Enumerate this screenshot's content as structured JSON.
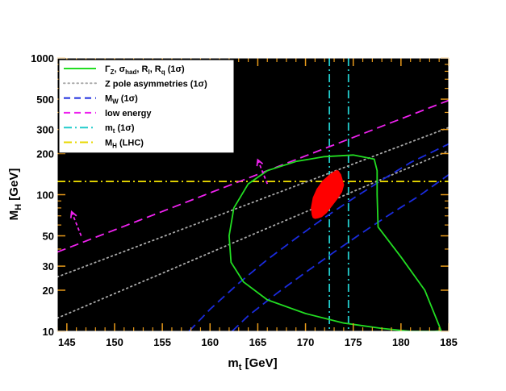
{
  "chart_data": {
    "type": "line",
    "xlabel": "m",
    "xlabel_sub": "t",
    "xlabel_unit": " [GeV]",
    "ylabel": "M",
    "ylabel_sub": "H",
    "ylabel_unit": " [GeV]",
    "xlim": [
      144,
      185
    ],
    "ylim": [
      10,
      1000
    ],
    "yscale": "log",
    "background": "#000000",
    "x_ticks": [
      145,
      150,
      155,
      160,
      165,
      170,
      175,
      180,
      185
    ],
    "x_tick_labels": [
      "145",
      "150",
      "155",
      "160",
      "165",
      "170",
      "175",
      "180",
      "185"
    ],
    "y_ticks": [
      10,
      20,
      30,
      50,
      100,
      200,
      300,
      500,
      1000
    ],
    "y_tick_labels": [
      "10",
      "20",
      "30",
      "50",
      "100",
      "200",
      "300",
      "500",
      "1000"
    ],
    "legend_position": "top-left",
    "legend": [
      {
        "key": "gz",
        "style": "solid",
        "color": "#22dd22",
        "parts": [
          [
            "Γ",
            ""
          ],
          [
            "Z",
            "sub"
          ],
          [
            ", σ",
            ""
          ],
          [
            "had",
            "sub"
          ],
          [
            ", R",
            ""
          ],
          [
            "l",
            "sub"
          ],
          [
            ", R",
            ""
          ],
          [
            "q",
            "sub"
          ],
          [
            " (1σ)",
            ""
          ]
        ]
      },
      {
        "key": "zpole",
        "style": "dotted",
        "color": "#aaaaaa",
        "parts": [
          [
            "Z pole asymmetries (1σ)",
            ""
          ]
        ]
      },
      {
        "key": "mw",
        "style": "dashed",
        "color": "#1a2bdd",
        "parts": [
          [
            "M",
            ""
          ],
          [
            "W",
            "sub"
          ],
          [
            " (1σ)",
            ""
          ]
        ]
      },
      {
        "key": "lowe",
        "style": "dashed",
        "color": "#ee22ee",
        "parts": [
          [
            "low energy",
            ""
          ]
        ]
      },
      {
        "key": "mt",
        "style": "dashdot",
        "color": "#22cccc",
        "parts": [
          [
            "m",
            ""
          ],
          [
            "t",
            "sub"
          ],
          [
            " (1σ)",
            ""
          ]
        ]
      },
      {
        "key": "mh",
        "style": "dashdot",
        "color": "#e8d800",
        "parts": [
          [
            "M",
            ""
          ],
          [
            "H",
            "sub"
          ],
          [
            " (LHC)",
            ""
          ]
        ]
      }
    ],
    "series": [
      {
        "key": "mt",
        "type": "vline",
        "x": [
          172.5,
          174.5
        ]
      },
      {
        "key": "mh",
        "type": "hline",
        "y": 125
      },
      {
        "key": "zpole",
        "type": "lines",
        "lines": [
          {
            "x": [
              144,
              185
            ],
            "y": [
              25,
              310
            ]
          },
          {
            "x": [
              144,
              185
            ],
            "y": [
              12.5,
              210
            ]
          }
        ]
      },
      {
        "key": "lowe",
        "type": "lines",
        "lines": [
          {
            "x": [
              144,
              185
            ],
            "y": [
              38,
              490
            ]
          }
        ]
      },
      {
        "key": "mw",
        "type": "curves",
        "lines": [
          {
            "x": [
              157.8,
              160,
              163,
              166,
              169,
              172,
              175,
              178,
              181,
              185
            ],
            "y": [
              10,
              14.5,
              22.5,
              33.5,
              48,
              68,
              94,
              128,
              172,
              235
            ]
          },
          {
            "x": [
              162.3,
              164,
              167,
              170,
              173,
              176,
              179,
              182,
              185
            ],
            "y": [
              10,
              13,
              19,
              27,
              38,
              53,
              73,
              99,
              140
            ]
          }
        ]
      },
      {
        "key": "gz",
        "type": "polygon",
        "x": [
          162,
          162.5,
          164,
          166,
          169,
          172,
          175,
          177.2,
          177.5,
          177.5,
          177.6,
          180,
          182.5,
          184,
          184.2,
          183.5,
          181,
          178,
          174,
          170,
          166,
          163.5,
          162.2,
          162
        ],
        "y": [
          50,
          80,
          120,
          150,
          175,
          190,
          195,
          182,
          150,
          100,
          58,
          35,
          20,
          11,
          10.1,
          10,
          10,
          10.5,
          11.5,
          13.5,
          17,
          23,
          32,
          50
        ]
      },
      {
        "key": "ellipse",
        "type": "ellipse",
        "color": "#ff0000",
        "points": {
          "x": [
            173.4,
            173.7,
            174.0,
            173.8,
            173.3,
            172.7,
            172.2,
            171.7,
            171.3,
            171.0,
            170.8,
            170.7,
            170.6,
            170.8,
            171.2,
            171.8,
            172.6,
            173.2
          ],
          "y": [
            150,
            140,
            118,
            105,
            93,
            82,
            74,
            69,
            67.5,
            67,
            68,
            71,
            80,
            95,
            110,
            126,
            141,
            150
          ]
        }
      },
      {
        "key": "lowe",
        "type": "arrows",
        "arrows": [
          {
            "from": [
              146.5,
              50
            ],
            "to": [
              145.5,
              75
            ]
          },
          {
            "from": [
              166,
              120
            ],
            "to": [
              165,
              180
            ]
          }
        ]
      }
    ]
  }
}
